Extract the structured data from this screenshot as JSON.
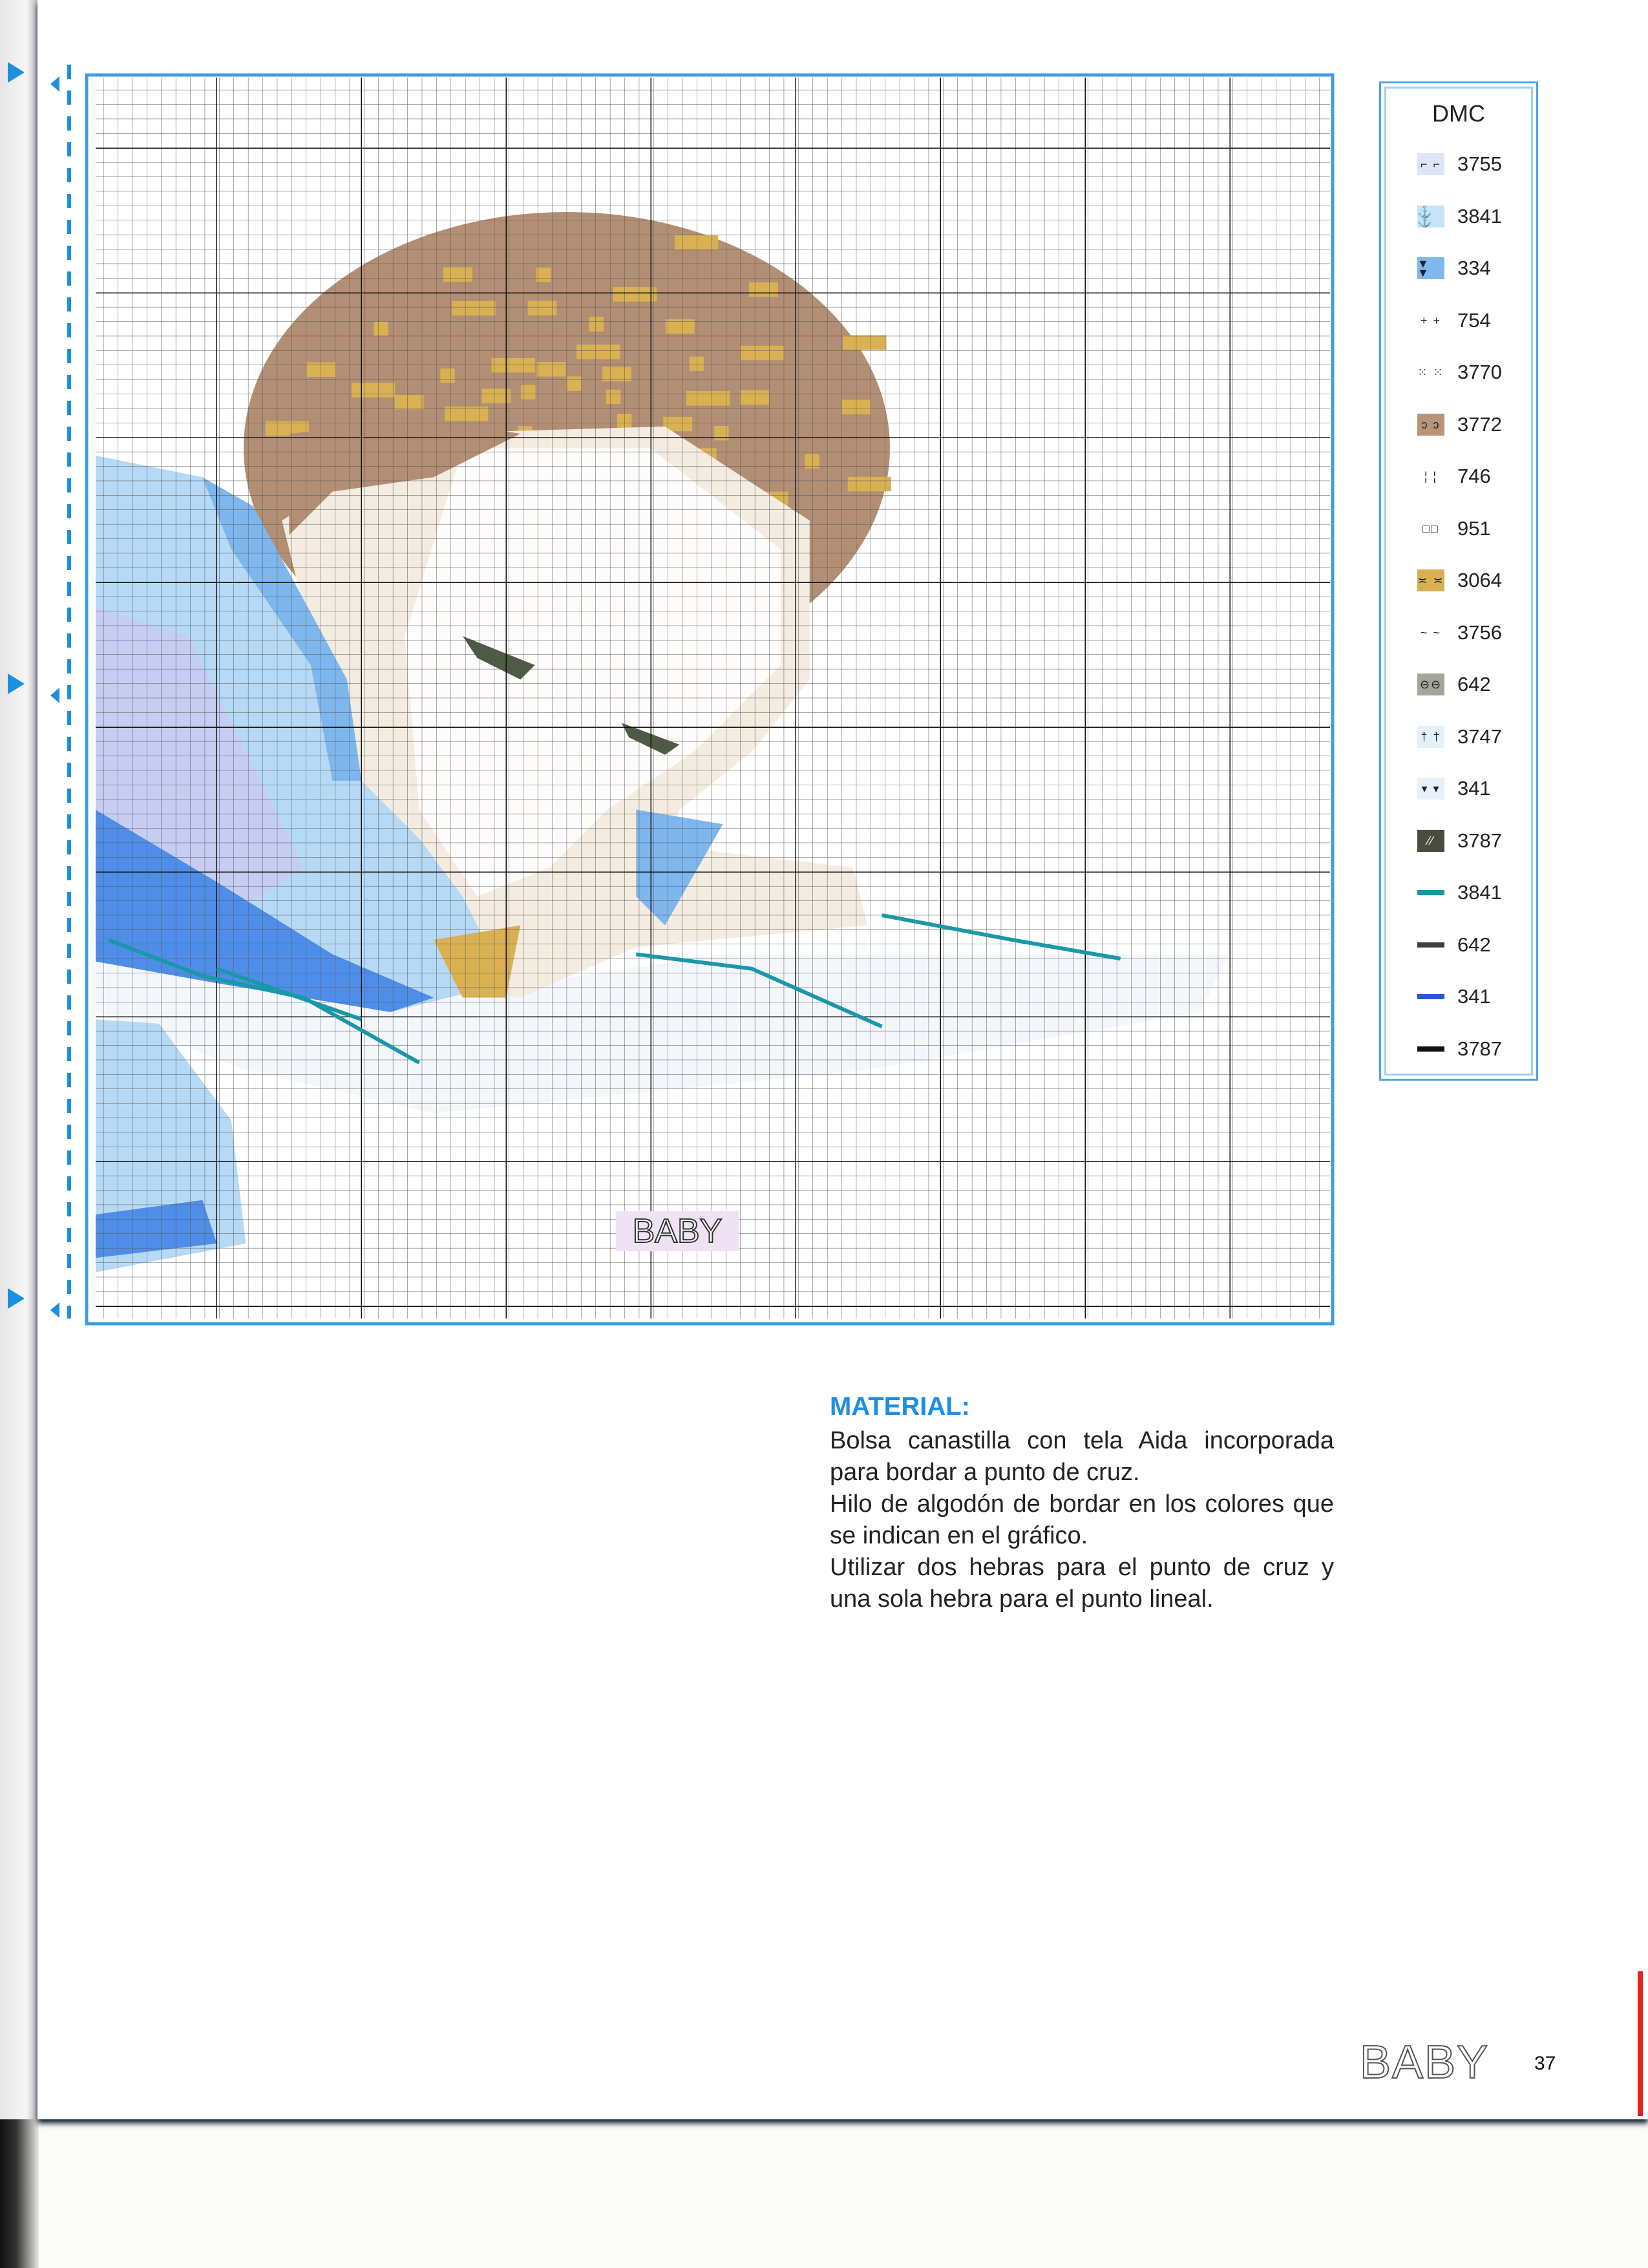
{
  "chart": {
    "label": "BABY",
    "colors": {
      "hair_brown": "#b28f74",
      "hair_gold": "#d9b153",
      "face_white": "#ffffff",
      "face_cream": "#f4ece0",
      "blue_light": "#b6d9f5",
      "blue_lavender": "#c6cdf2",
      "blue_mid": "#7eb6ee",
      "blue_dark": "#4f8ee8",
      "teal_line": "#1b98a8",
      "eye_dark": "#4f5a45",
      "grid": "#1a1a1a"
    }
  },
  "legend": {
    "title": "DMC",
    "items": [
      {
        "code": "3755",
        "symbol": "⌐ ⌐",
        "type": "cross",
        "color": "#dfe4f6"
      },
      {
        "code": "3841",
        "symbol": "⚓ ⚓",
        "type": "cross",
        "color": "#c6e4f8"
      },
      {
        "code": "334",
        "symbol": "▼ ▼",
        "type": "cross",
        "color": "#7eb8ee"
      },
      {
        "code": "754",
        "symbol": "+ +",
        "type": "cross",
        "color": "#ffffff"
      },
      {
        "code": "3770",
        "symbol": "⁙ ⁙",
        "type": "cross",
        "color": "#ffffff"
      },
      {
        "code": "3772",
        "symbol": "ↄ ↄ",
        "type": "cross",
        "color": "#b89478"
      },
      {
        "code": "746",
        "symbol": "¦ ¦",
        "type": "cross",
        "color": "#ffffff"
      },
      {
        "code": "951",
        "symbol": "□□",
        "type": "cross",
        "color": "#ffffff"
      },
      {
        "code": "3064",
        "symbol": "≍ ≍",
        "type": "cross",
        "color": "#d9b153"
      },
      {
        "code": "3756",
        "symbol": "~ ~",
        "type": "cross",
        "color": "#ffffff"
      },
      {
        "code": "642",
        "symbol": "⊖⊖",
        "type": "cross",
        "color": "#a4a69c"
      },
      {
        "code": "3747",
        "symbol": "† †",
        "type": "cross",
        "color": "#e4f1fb"
      },
      {
        "code": "341",
        "symbol": "▾ ▾",
        "type": "cross",
        "color": "#e6f1fb"
      },
      {
        "code": "3787",
        "symbol": "⁄⁄",
        "type": "cross",
        "color": "#4a4c40"
      },
      {
        "code": "3841",
        "type": "line",
        "color": "#1b98a8"
      },
      {
        "code": "642",
        "type": "line",
        "color": "#3c3f40"
      },
      {
        "code": "341",
        "type": "line",
        "color": "#2a55d6"
      },
      {
        "code": "3787",
        "type": "line",
        "color": "#111111"
      }
    ]
  },
  "material": {
    "heading": "MATERIAL:",
    "paragraphs": [
      "Bolsa canastilla con tela Aida incorporada para bordar a punto de cruz.",
      "Hilo de algodón de bordar en los colores que se indican en el gráfico.",
      "Utilizar dos hebras para el punto de cruz y una sola hebra para el punto lineal."
    ]
  },
  "footer": {
    "section": "BABY",
    "page_number": "37"
  }
}
